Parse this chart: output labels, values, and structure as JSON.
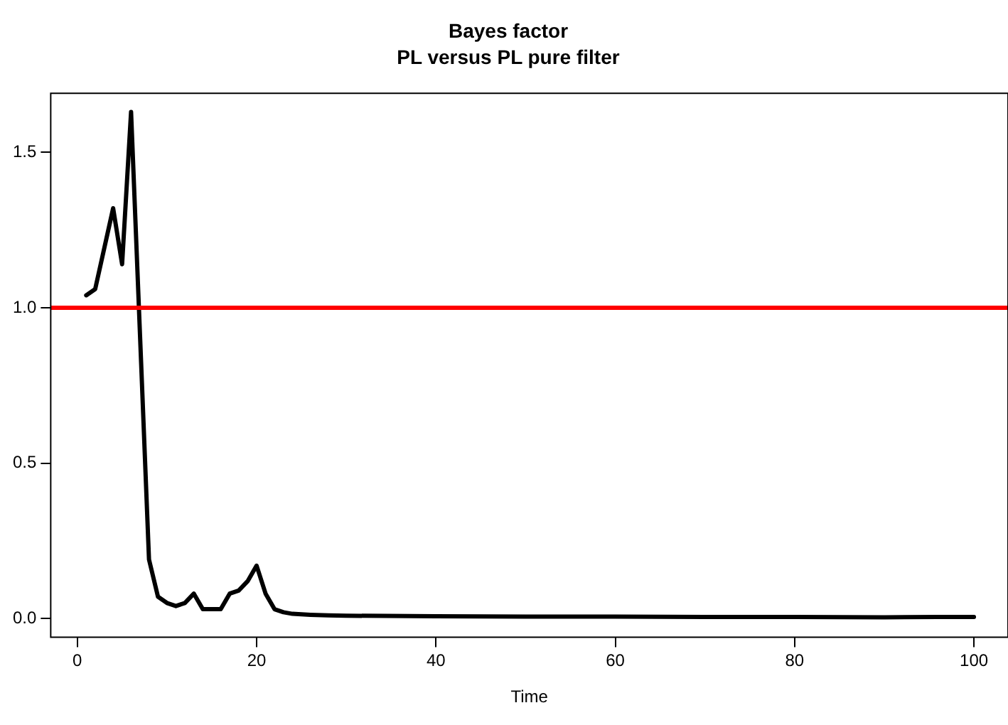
{
  "chart_data": {
    "type": "line",
    "title": "Bayes factor",
    "subtitle": "PL versus PL pure filter",
    "xlabel": "Time",
    "x": [
      1,
      2,
      4,
      5,
      6,
      7,
      8,
      9,
      10,
      11,
      12,
      13,
      14,
      15,
      16,
      17,
      18,
      19,
      20,
      21,
      22,
      23,
      24,
      26,
      28,
      30,
      40,
      50,
      60,
      70,
      80,
      90,
      96,
      100
    ],
    "series": [
      {
        "color": "#000000",
        "values": [
          1.04,
          1.06,
          1.32,
          1.14,
          1.63,
          0.91,
          0.19,
          0.07,
          0.05,
          0.04,
          0.05,
          0.08,
          0.03,
          0.03,
          0.03,
          0.08,
          0.09,
          0.12,
          0.17,
          0.08,
          0.03,
          0.02,
          0.015,
          0.012,
          0.01,
          0.009,
          0.007,
          0.006,
          0.006,
          0.005,
          0.005,
          0.004,
          0.005,
          0.005
        ]
      }
    ],
    "xlim": [
      -2.96,
      103.8
    ],
    "ylim": [
      -0.06,
      1.69
    ],
    "xticks": [
      0,
      20,
      40,
      60,
      80,
      100
    ],
    "yticks": [
      {
        "value": 0,
        "label": "0.0"
      },
      {
        "value": 0.5,
        "label": "0.5"
      },
      {
        "value": 1,
        "label": "1.0"
      },
      {
        "value": 1.5,
        "label": "1.5"
      }
    ],
    "ref_lines": [
      {
        "axis": "y",
        "value": 1,
        "color": "#ff0000"
      }
    ],
    "grid": false,
    "legend": false,
    "marker": "none",
    "line_style": "solid"
  }
}
